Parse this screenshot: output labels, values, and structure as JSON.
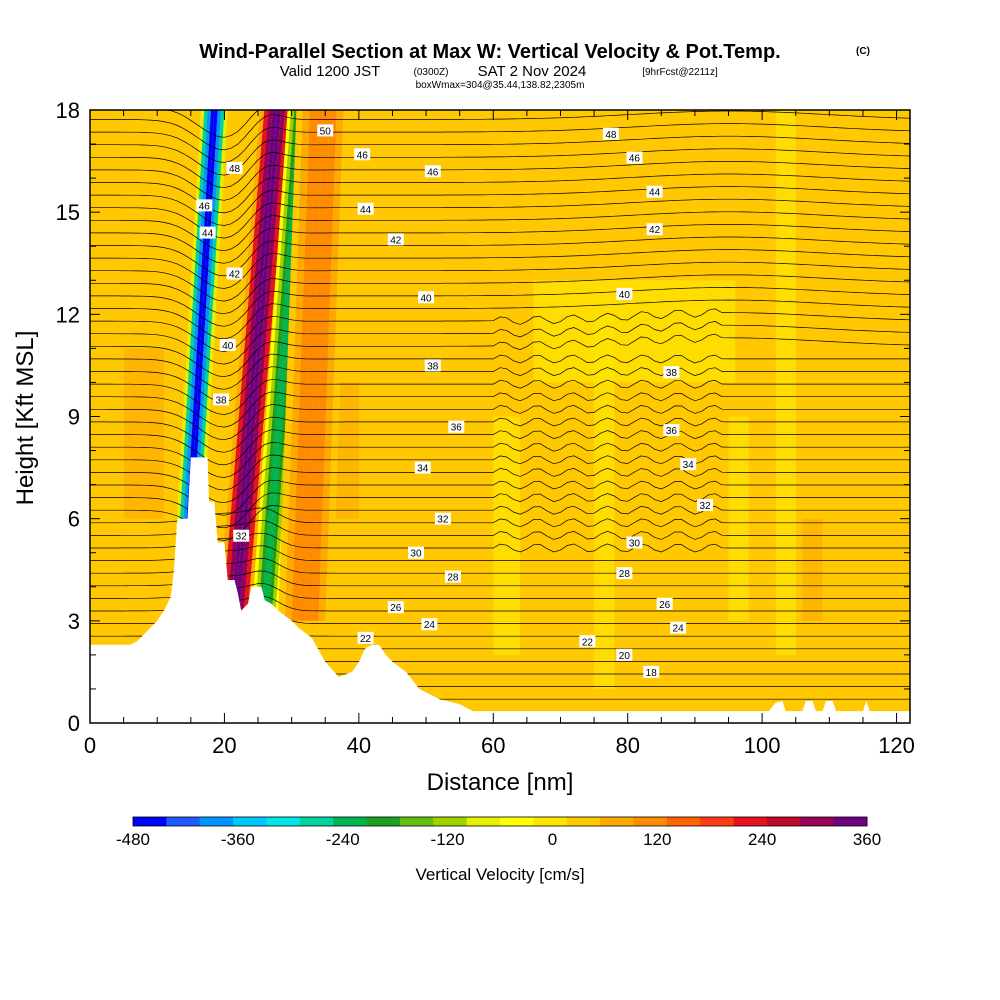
{
  "title": {
    "main": "Wind-Parallel Section at Max W: Vertical Velocity & Pot.Temp.",
    "copyright": "(C)",
    "valid_prefix": "Valid 1200 JST",
    "valid_utc": "(0300Z)",
    "valid_date": "SAT 2 Nov 2024",
    "forecast": "[9hrFcst@2211z]",
    "box_info": "boxWmax=304@35.44,138.82,2305m"
  },
  "chart_data": {
    "type": "contour",
    "xlabel": "Distance [nm]",
    "ylabel": "Height [Kft MSL]",
    "xlim": [
      0,
      122
    ],
    "ylim": [
      0,
      18
    ],
    "x_ticks": [
      0,
      20,
      40,
      60,
      80,
      100,
      120
    ],
    "y_ticks": [
      0,
      3,
      6,
      9,
      12,
      15,
      18
    ],
    "colorbar": {
      "label": "Vertical Velocity [cm/s]",
      "ticks": [
        "-480",
        "-360",
        "-240",
        "-120",
        "0",
        "120",
        "240",
        "360"
      ],
      "min": -480,
      "max": 360,
      "colors": [
        "#0000ff",
        "#1e5cff",
        "#0096ff",
        "#00c8ff",
        "#00e6e6",
        "#00d2a0",
        "#00b450",
        "#1ea01e",
        "#64be14",
        "#a0d200",
        "#e6f000",
        "#ffff00",
        "#ffe600",
        "#ffc800",
        "#ffaa00",
        "#ff8c00",
        "#ff6400",
        "#ff3c14",
        "#e6141e",
        "#be0a28",
        "#96005a",
        "#6e0082"
      ]
    },
    "theta_labels": [
      {
        "x": 35,
        "y": 17.4,
        "v": "50"
      },
      {
        "x": 40.5,
        "y": 16.7,
        "v": "46"
      },
      {
        "x": 77.5,
        "y": 17.3,
        "v": "48"
      },
      {
        "x": 81,
        "y": 16.6,
        "v": "46"
      },
      {
        "x": 51,
        "y": 16.2,
        "v": "46"
      },
      {
        "x": 84,
        "y": 15.6,
        "v": "44"
      },
      {
        "x": 41,
        "y": 15.1,
        "v": "44"
      },
      {
        "x": 84,
        "y": 14.5,
        "v": "42"
      },
      {
        "x": 45.5,
        "y": 14.2,
        "v": "42"
      },
      {
        "x": 50,
        "y": 12.5,
        "v": "40"
      },
      {
        "x": 79.5,
        "y": 12.6,
        "v": "40"
      },
      {
        "x": 51,
        "y": 10.5,
        "v": "38"
      },
      {
        "x": 86.5,
        "y": 10.3,
        "v": "38"
      },
      {
        "x": 54.5,
        "y": 8.7,
        "v": "36"
      },
      {
        "x": 86.5,
        "y": 8.6,
        "v": "36"
      },
      {
        "x": 49.5,
        "y": 7.5,
        "v": "34"
      },
      {
        "x": 89,
        "y": 7.6,
        "v": "34"
      },
      {
        "x": 52.5,
        "y": 6.0,
        "v": "32"
      },
      {
        "x": 91.5,
        "y": 6.4,
        "v": "32"
      },
      {
        "x": 48.5,
        "y": 5.0,
        "v": "30"
      },
      {
        "x": 81,
        "y": 5.3,
        "v": "30"
      },
      {
        "x": 54,
        "y": 4.3,
        "v": "28"
      },
      {
        "x": 79.5,
        "y": 4.4,
        "v": "28"
      },
      {
        "x": 45.5,
        "y": 3.4,
        "v": "26"
      },
      {
        "x": 85.5,
        "y": 3.5,
        "v": "26"
      },
      {
        "x": 50.5,
        "y": 2.9,
        "v": "24"
      },
      {
        "x": 87.5,
        "y": 2.8,
        "v": "24"
      },
      {
        "x": 41,
        "y": 2.5,
        "v": "22"
      },
      {
        "x": 74,
        "y": 2.4,
        "v": "22"
      },
      {
        "x": 79.5,
        "y": 2.0,
        "v": "20"
      },
      {
        "x": 83.5,
        "y": 1.5,
        "v": "18"
      },
      {
        "x": 21.5,
        "y": 16.3,
        "v": "48"
      },
      {
        "x": 17,
        "y": 15.2,
        "v": "46"
      },
      {
        "x": 17.5,
        "y": 14.4,
        "v": "44"
      },
      {
        "x": 21.5,
        "y": 13.2,
        "v": "42"
      },
      {
        "x": 20.5,
        "y": 11.1,
        "v": "40"
      },
      {
        "x": 19.5,
        "y": 9.5,
        "v": "38"
      },
      {
        "x": 22.5,
        "y": 5.5,
        "v": "32"
      }
    ],
    "terrain": [
      [
        0,
        2.3
      ],
      [
        3,
        2.3
      ],
      [
        6,
        2.3
      ],
      [
        7,
        2.4
      ],
      [
        8,
        2.6
      ],
      [
        9,
        2.8
      ],
      [
        10,
        3.0
      ],
      [
        11,
        3.3
      ],
      [
        12,
        3.7
      ],
      [
        12.5,
        4.5
      ],
      [
        13,
        6.0
      ],
      [
        14.5,
        6.0
      ],
      [
        15,
        7.8
      ],
      [
        17.5,
        7.8
      ],
      [
        17.7,
        6.5
      ],
      [
        18.5,
        6.5
      ],
      [
        19,
        5.3
      ],
      [
        20,
        5.3
      ],
      [
        20.5,
        4.2
      ],
      [
        21.5,
        4.2
      ],
      [
        22,
        3.8
      ],
      [
        22.5,
        3.3
      ],
      [
        23.5,
        3.5
      ],
      [
        24,
        4.0
      ],
      [
        25.5,
        4.0
      ],
      [
        26,
        3.6
      ],
      [
        27,
        3.5
      ],
      [
        28,
        3.3
      ],
      [
        30,
        3.0
      ],
      [
        31,
        2.8
      ],
      [
        33,
        2.5
      ],
      [
        35,
        1.8
      ],
      [
        37,
        1.35
      ],
      [
        39,
        1.5
      ],
      [
        40,
        1.8
      ],
      [
        41,
        2.2
      ],
      [
        42,
        2.3
      ],
      [
        43,
        2.3
      ],
      [
        44,
        2.0
      ],
      [
        45,
        1.8
      ],
      [
        47,
        1.5
      ],
      [
        49,
        1.0
      ],
      [
        52,
        0.7
      ],
      [
        55,
        0.55
      ],
      [
        57,
        0.35
      ],
      [
        62,
        0.35
      ],
      [
        70,
        0.35
      ],
      [
        90,
        0.35
      ],
      [
        99,
        0.35
      ],
      [
        101,
        0.35
      ],
      [
        102,
        0.6
      ],
      [
        103,
        0.65
      ],
      [
        103.5,
        0.35
      ],
      [
        106,
        0.35
      ],
      [
        106.5,
        0.65
      ],
      [
        107.5,
        0.65
      ],
      [
        108,
        0.35
      ],
      [
        109,
        0.35
      ],
      [
        109.5,
        0.65
      ],
      [
        110.5,
        0.65
      ],
      [
        111,
        0.35
      ],
      [
        115,
        0.35
      ],
      [
        115.5,
        0.65
      ],
      [
        116,
        0.35
      ],
      [
        117,
        0.35
      ],
      [
        122,
        0.35
      ]
    ],
    "updraft_bands": [
      {
        "x0": 12,
        "x1": 16,
        "w": -480,
        "lean": 0.25
      },
      {
        "x0": 19,
        "x1": 24,
        "w": 360,
        "lean": 0.35
      },
      {
        "x0": 24,
        "x1": 28,
        "w": -240,
        "lean": 0.3
      },
      {
        "x0": 28,
        "x1": 36,
        "w": 120,
        "lean": 0.15
      }
    ]
  }
}
